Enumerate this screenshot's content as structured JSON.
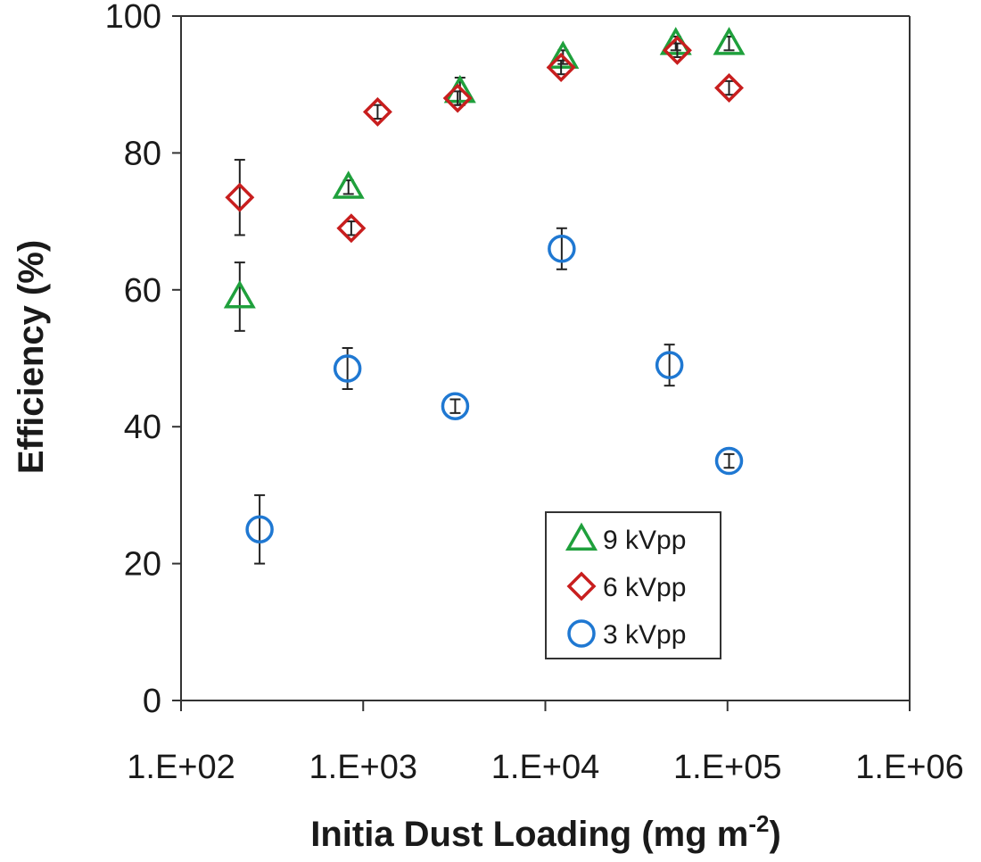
{
  "chart_data": {
    "type": "scatter",
    "title": "",
    "xlabel": "Initia Dust Loading (mg m",
    "xlabel_sup": "-2",
    "xlabel_end": ")",
    "ylabel": "Efficiency (%)",
    "xscale": "log",
    "xlim": [
      100,
      1000000
    ],
    "ylim": [
      0,
      100
    ],
    "xticks": [
      100,
      1000,
      10000,
      100000,
      1000000
    ],
    "xtick_labels": [
      "1.E+02",
      "1.E+03",
      "1.E+04",
      "1.E+05",
      "1.E+06"
    ],
    "yticks": [
      0,
      20,
      40,
      60,
      80,
      100
    ],
    "ytick_labels": [
      "0",
      "20",
      "40",
      "60",
      "80",
      "100"
    ],
    "grid": false,
    "legend_position": "bottom-right",
    "series": [
      {
        "name": "9 kVpp",
        "marker": "triangle",
        "color": "#1fa03c",
        "points": [
          {
            "x": 210,
            "y": 59,
            "err": 5
          },
          {
            "x": 830,
            "y": 75,
            "err": 1
          },
          {
            "x": 3400,
            "y": 89,
            "err": 2
          },
          {
            "x": 12500,
            "y": 94,
            "err": 1
          },
          {
            "x": 52000,
            "y": 96,
            "err": 1
          },
          {
            "x": 102000,
            "y": 96,
            "err": 1
          }
        ]
      },
      {
        "name": "6 kVpp",
        "marker": "diamond",
        "color": "#c81e1e",
        "points": [
          {
            "x": 210,
            "y": 73.5,
            "err": 5.5
          },
          {
            "x": 860,
            "y": 69,
            "err": 1
          },
          {
            "x": 1200,
            "y": 86,
            "err": 1
          },
          {
            "x": 3300,
            "y": 88,
            "err": 1
          },
          {
            "x": 12200,
            "y": 92.5,
            "err": 1
          },
          {
            "x": 53000,
            "y": 95,
            "err": 1
          },
          {
            "x": 102000,
            "y": 89.5,
            "err": 1
          }
        ]
      },
      {
        "name": "3 kVpp",
        "marker": "circle",
        "color": "#1f78d2",
        "points": [
          {
            "x": 270,
            "y": 25,
            "err": 5
          },
          {
            "x": 820,
            "y": 48.5,
            "err": 3
          },
          {
            "x": 3200,
            "y": 43,
            "err": 1
          },
          {
            "x": 12300,
            "y": 66,
            "err": 3
          },
          {
            "x": 48000,
            "y": 49,
            "err": 3
          },
          {
            "x": 102000,
            "y": 35,
            "err": 1
          }
        ]
      }
    ]
  }
}
